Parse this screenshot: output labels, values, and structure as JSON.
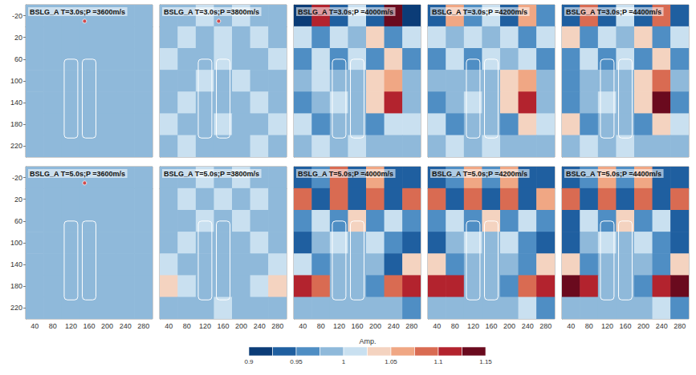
{
  "chart_data": [
    {
      "type": "heatmap",
      "title": "BSLG_A T=3.0s;P =3600m/s",
      "tick_labels": "y",
      "xlim": [
        20,
        300
      ],
      "ylim": [
        -40,
        240
      ],
      "xticks": [
        40,
        80,
        120,
        160,
        200,
        240,
        280
      ],
      "yticks": [
        -20,
        20,
        60,
        100,
        140,
        180,
        220
      ],
      "x_edges": [
        20,
        60,
        100,
        140,
        180,
        220,
        260,
        300
      ],
      "y_edges": [
        -40,
        0,
        40,
        80,
        120,
        160,
        200,
        240
      ],
      "cells": [
        [
          1,
          1,
          1,
          1,
          1,
          1,
          1
        ],
        [
          1,
          1,
          1,
          1,
          1,
          1,
          1
        ],
        [
          1,
          1,
          1,
          1,
          1,
          1,
          1
        ],
        [
          1,
          1,
          1,
          1,
          1,
          1,
          1
        ],
        [
          1,
          1,
          1,
          1,
          1,
          1,
          1
        ],
        [
          1,
          1,
          1,
          1,
          1,
          1,
          1
        ],
        [
          1,
          1,
          1,
          1,
          1,
          1,
          1
        ]
      ],
      "structures": [
        [
          105,
          60,
          135,
          205
        ],
        [
          145,
          60,
          175,
          205
        ]
      ],
      "source": [
        150,
        -10
      ]
    },
    {
      "type": "heatmap",
      "title": "BSLG_A T=3.0s;P =3800m/s",
      "tick_labels": false,
      "xlim": [
        20,
        300
      ],
      "ylim": [
        -40,
        240
      ],
      "xticks": [
        40,
        80,
        120,
        160,
        200,
        240,
        280
      ],
      "yticks": [
        -20,
        20,
        60,
        100,
        140,
        180,
        220
      ],
      "x_edges": [
        20,
        60,
        100,
        140,
        180,
        220,
        260,
        300
      ],
      "y_edges": [
        -40,
        0,
        40,
        80,
        120,
        160,
        200,
        240
      ],
      "cells": [
        [
          1.0,
          0.99,
          1.01,
          1.0,
          1.01,
          0.99,
          1.0
        ],
        [
          0.99,
          1.01,
          0.98,
          1.01,
          0.98,
          1.01,
          0.99
        ],
        [
          1.01,
          1.0,
          0.99,
          1.01,
          0.99,
          1.0,
          1.01
        ],
        [
          1.0,
          0.99,
          1.01,
          1.0,
          1.01,
          0.99,
          1.0
        ],
        [
          0.99,
          1.01,
          1.0,
          0.99,
          1.0,
          1.02,
          0.99
        ],
        [
          1.01,
          1.0,
          0.99,
          1.01,
          0.99,
          1.0,
          1.01
        ],
        [
          1.0,
          1.01,
          1.0,
          0.99,
          1.0,
          1.01,
          1.0
        ]
      ],
      "structures": [
        [
          105,
          60,
          135,
          205
        ],
        [
          145,
          60,
          175,
          205
        ]
      ],
      "source": [
        150,
        -10
      ]
    },
    {
      "type": "heatmap",
      "title": "BSLG_A T=3.0s;P =4000m/s",
      "tick_labels": false,
      "xlim": [
        20,
        300
      ],
      "ylim": [
        -40,
        240
      ],
      "xticks": [
        40,
        80,
        120,
        160,
        200,
        240,
        280
      ],
      "yticks": [
        -20,
        20,
        60,
        100,
        140,
        180,
        220
      ],
      "x_edges": [
        20,
        60,
        100,
        140,
        180,
        220,
        260,
        300
      ],
      "y_edges": [
        -40,
        0,
        40,
        80,
        120,
        160,
        200,
        240
      ],
      "cells": [
        [
          0.92,
          1.12,
          0.93,
          1.01,
          0.94,
          1.13,
          0.92
        ],
        [
          1.01,
          0.97,
          1.02,
          0.98,
          1.03,
          0.96,
          1.02
        ],
        [
          0.97,
          1.02,
          0.96,
          1.01,
          0.97,
          1.03,
          0.96
        ],
        [
          0.98,
          1.01,
          0.99,
          1.0,
          1.04,
          1.06,
          0.99
        ],
        [
          0.96,
          0.99,
          1.01,
          1.0,
          1.03,
          1.11,
          0.98
        ],
        [
          1.02,
          0.97,
          1.0,
          0.99,
          0.97,
          1.02,
          1.01
        ],
        [
          0.98,
          1.01,
          0.99,
          1.01,
          0.98,
          0.99,
          1.0
        ]
      ],
      "structures": [
        [
          105,
          60,
          135,
          205
        ],
        [
          145,
          60,
          175,
          205
        ]
      ]
    },
    {
      "type": "heatmap",
      "title": "BSLG_A T=3.0s;P =4200m/s",
      "tick_labels": false,
      "xlim": [
        20,
        300
      ],
      "ylim": [
        -40,
        240
      ],
      "xticks": [
        40,
        80,
        120,
        160,
        200,
        240,
        280
      ],
      "yticks": [
        -20,
        20,
        60,
        100,
        140,
        180,
        220
      ],
      "x_edges": [
        20,
        60,
        100,
        140,
        180,
        220,
        260,
        300
      ],
      "y_edges": [
        -40,
        0,
        40,
        80,
        120,
        160,
        200,
        240
      ],
      "cells": [
        [
          0.95,
          1.06,
          0.96,
          1.02,
          0.95,
          1.07,
          0.96
        ],
        [
          1.02,
          0.98,
          1.01,
          0.99,
          1.02,
          0.97,
          1.01
        ],
        [
          0.97,
          1.01,
          0.97,
          1.01,
          0.98,
          1.02,
          0.97
        ],
        [
          0.98,
          1.0,
          0.99,
          1.0,
          1.04,
          1.07,
          0.99
        ],
        [
          0.97,
          0.99,
          1.01,
          1.0,
          1.03,
          1.12,
          0.98
        ],
        [
          1.02,
          0.97,
          1.0,
          0.99,
          0.97,
          1.03,
          1.01
        ],
        [
          0.99,
          1.01,
          0.99,
          1.01,
          0.98,
          0.99,
          1.0
        ]
      ],
      "structures": [
        [
          105,
          60,
          135,
          205
        ],
        [
          145,
          60,
          175,
          205
        ]
      ]
    },
    {
      "type": "heatmap",
      "title": "BSLG_A T=3.0s;P =4400m/s",
      "tick_labels": false,
      "xlim": [
        20,
        300
      ],
      "ylim": [
        -40,
        240
      ],
      "xticks": [
        40,
        80,
        120,
        160,
        200,
        240,
        280
      ],
      "yticks": [
        -20,
        20,
        60,
        100,
        140,
        180,
        220
      ],
      "x_edges": [
        20,
        60,
        100,
        140,
        180,
        220,
        260,
        300
      ],
      "y_edges": [
        -40,
        0,
        40,
        80,
        120,
        160,
        200,
        240
      ],
      "cells": [
        [
          0.94,
          1.08,
          0.95,
          1.02,
          0.94,
          1.09,
          0.95
        ],
        [
          1.03,
          0.97,
          1.02,
          0.98,
          1.03,
          0.96,
          1.02
        ],
        [
          0.96,
          1.02,
          0.97,
          1.01,
          0.97,
          1.03,
          0.96
        ],
        [
          0.97,
          1.0,
          0.99,
          1.0,
          1.05,
          1.08,
          0.98
        ],
        [
          0.96,
          0.99,
          1.01,
          1.0,
          1.04,
          1.13,
          0.97
        ],
        [
          1.03,
          0.97,
          1.0,
          0.99,
          0.96,
          1.03,
          1.02
        ],
        [
          0.99,
          1.01,
          0.99,
          1.01,
          0.98,
          0.99,
          1.0
        ]
      ],
      "structures": [
        [
          105,
          60,
          135,
          205
        ],
        [
          145,
          60,
          175,
          205
        ]
      ]
    },
    {
      "type": "heatmap",
      "title": "BSLG_A T=5.0s;P =3600m/s",
      "tick_labels": true,
      "xlim": [
        20,
        300
      ],
      "ylim": [
        -40,
        240
      ],
      "xticks": [
        40,
        80,
        120,
        160,
        200,
        240,
        280
      ],
      "yticks": [
        -20,
        20,
        60,
        100,
        140,
        180,
        220
      ],
      "x_edges": [
        20,
        60,
        100,
        140,
        180,
        220,
        260,
        300
      ],
      "y_edges": [
        -40,
        0,
        40,
        80,
        120,
        160,
        200,
        240
      ],
      "cells": [
        [
          1,
          1,
          1,
          1,
          1,
          1,
          1
        ],
        [
          1,
          1,
          1,
          1,
          1,
          1,
          1
        ],
        [
          1,
          1,
          1,
          1,
          1,
          1,
          1
        ],
        [
          1,
          1,
          1,
          1,
          1,
          1,
          1
        ],
        [
          1,
          1,
          1,
          1,
          1,
          1,
          1
        ],
        [
          1,
          1,
          1,
          1,
          1,
          1,
          1
        ],
        [
          1,
          1,
          1,
          1,
          1,
          1,
          1
        ]
      ],
      "structures": [
        [
          105,
          60,
          135,
          205
        ],
        [
          145,
          60,
          175,
          205
        ]
      ],
      "source": [
        150,
        -10
      ]
    },
    {
      "type": "heatmap",
      "title": "BSLG_A T=5.0s;P =3800m/s",
      "tick_labels": "x",
      "xlim": [
        20,
        300
      ],
      "ylim": [
        -40,
        240
      ],
      "xticks": [
        40,
        80,
        120,
        160,
        200,
        240,
        280
      ],
      "yticks": [
        -20,
        20,
        60,
        100,
        140,
        180,
        220
      ],
      "x_edges": [
        20,
        60,
        100,
        140,
        180,
        220,
        260,
        300
      ],
      "y_edges": [
        -40,
        0,
        40,
        80,
        120,
        160,
        200,
        240
      ],
      "cells": [
        [
          1.0,
          0.99,
          1.01,
          1.0,
          1.01,
          0.99,
          1.0
        ],
        [
          0.99,
          1.02,
          0.98,
          1.02,
          0.98,
          1.02,
          0.99
        ],
        [
          1.0,
          0.99,
          1.01,
          0.99,
          1.01,
          0.99,
          1.0
        ],
        [
          0.99,
          1.01,
          1.0,
          1.0,
          1.0,
          1.01,
          0.99
        ],
        [
          1.02,
          1.0,
          0.99,
          1.0,
          0.99,
          1.0,
          1.02
        ],
        [
          1.04,
          1.01,
          1.0,
          1.0,
          1.0,
          1.01,
          1.03
        ],
        [
          1.0,
          0.99,
          1.0,
          1.01,
          1.0,
          0.99,
          1.0
        ]
      ],
      "structures": [
        [
          105,
          60,
          135,
          205
        ],
        [
          145,
          60,
          175,
          205
        ]
      ]
    },
    {
      "type": "heatmap",
      "title": "BSLG_A T=5.0s;P =4000m/s",
      "tick_labels": "x",
      "xlim": [
        20,
        300
      ],
      "ylim": [
        -40,
        240
      ],
      "xticks": [
        40,
        80,
        120,
        160,
        200,
        240,
        280
      ],
      "yticks": [
        -20,
        20,
        60,
        100,
        140,
        180,
        220
      ],
      "x_edges": [
        20,
        60,
        100,
        140,
        180,
        220,
        260,
        300
      ],
      "y_edges": [
        -40,
        0,
        40,
        80,
        120,
        160,
        200,
        240
      ],
      "cells": [
        [
          0.93,
          0.96,
          1.08,
          0.95,
          1.06,
          0.94,
          0.93
        ],
        [
          1.1,
          0.93,
          1.09,
          0.94,
          1.1,
          0.93,
          1.08
        ],
        [
          0.96,
          1.02,
          0.97,
          1.03,
          0.97,
          1.02,
          0.96
        ],
        [
          0.94,
          0.99,
          1.01,
          1.0,
          1.01,
          0.97,
          0.95
        ],
        [
          1.02,
          0.96,
          1.0,
          1.0,
          0.99,
          0.95,
          1.03
        ],
        [
          1.12,
          1.1,
          0.98,
          1.0,
          0.97,
          1.09,
          1.12
        ],
        [
          0.98,
          1.0,
          0.99,
          1.0,
          0.99,
          1.0,
          0.97
        ]
      ],
      "structures": [
        [
          105,
          60,
          135,
          205
        ],
        [
          145,
          60,
          175,
          205
        ]
      ]
    },
    {
      "type": "heatmap",
      "title": "BSLG_A T=5.0s;P =4200m/s",
      "tick_labels": "x",
      "xlim": [
        20,
        300
      ],
      "ylim": [
        -40,
        240
      ],
      "xticks": [
        40,
        80,
        120,
        160,
        200,
        240,
        280
      ],
      "yticks": [
        -20,
        20,
        60,
        100,
        140,
        180,
        220
      ],
      "x_edges": [
        20,
        60,
        100,
        140,
        180,
        220,
        260,
        300
      ],
      "y_edges": [
        -40,
        0,
        40,
        80,
        120,
        160,
        200,
        240
      ],
      "cells": [
        [
          0.94,
          0.97,
          1.07,
          0.96,
          1.06,
          0.95,
          0.94
        ],
        [
          1.09,
          0.94,
          1.08,
          0.95,
          1.09,
          0.94,
          1.07
        ],
        [
          0.96,
          1.02,
          0.97,
          1.03,
          0.97,
          1.02,
          0.96
        ],
        [
          0.94,
          0.99,
          1.01,
          1.0,
          1.01,
          0.97,
          0.95
        ],
        [
          1.03,
          0.96,
          1.0,
          1.0,
          0.99,
          0.96,
          1.04
        ],
        [
          1.12,
          1.11,
          0.98,
          1.0,
          0.97,
          1.1,
          1.12
        ],
        [
          0.98,
          1.0,
          0.99,
          1.0,
          0.99,
          1.01,
          0.97
        ]
      ],
      "structures": [
        [
          105,
          60,
          135,
          205
        ],
        [
          145,
          60,
          175,
          205
        ]
      ]
    },
    {
      "type": "heatmap",
      "title": "BSLG_A T=5.0s;P =4400m/s",
      "tick_labels": "x",
      "xlim": [
        20,
        300
      ],
      "ylim": [
        -40,
        240
      ],
      "xticks": [
        40,
        80,
        120,
        160,
        200,
        240,
        280
      ],
      "yticks": [
        -20,
        20,
        60,
        100,
        140,
        180,
        220
      ],
      "x_edges": [
        20,
        60,
        100,
        140,
        180,
        220,
        260,
        300
      ],
      "y_edges": [
        -40,
        0,
        40,
        80,
        120,
        160,
        200,
        240
      ],
      "cells": [
        [
          0.94,
          0.97,
          1.06,
          0.96,
          1.07,
          0.95,
          0.94
        ],
        [
          1.08,
          0.94,
          1.09,
          0.95,
          1.08,
          0.94,
          1.09
        ],
        [
          0.95,
          1.02,
          0.97,
          1.03,
          0.97,
          1.02,
          0.95
        ],
        [
          0.93,
          0.99,
          1.01,
          1.0,
          1.01,
          0.96,
          0.94
        ],
        [
          1.04,
          0.96,
          1.0,
          1.0,
          0.99,
          0.96,
          1.05
        ],
        [
          1.14,
          1.12,
          0.98,
          1.0,
          0.97,
          1.11,
          1.13
        ],
        [
          0.98,
          1.0,
          0.99,
          1.0,
          0.99,
          1.01,
          0.97
        ]
      ],
      "structures": [
        [
          105,
          60,
          135,
          205
        ],
        [
          145,
          60,
          175,
          205
        ]
      ]
    }
  ],
  "colorbar": {
    "label": "Amp.",
    "range": [
      0.9,
      1.15
    ],
    "ticks": [
      0.9,
      0.95,
      1,
      1.05,
      1.1,
      1.15
    ],
    "bounds": [
      0.9,
      0.925,
      0.95,
      0.975,
      1.0,
      1.025,
      1.05,
      1.075,
      1.1,
      1.125,
      1.15
    ],
    "colors": [
      "#0b3c77",
      "#1f5fa0",
      "#4f8ec4",
      "#8fb9da",
      "#c9e0f0",
      "#f4d3c0",
      "#f0a784",
      "#d96b52",
      "#b3232e",
      "#6a0a1e"
    ]
  }
}
